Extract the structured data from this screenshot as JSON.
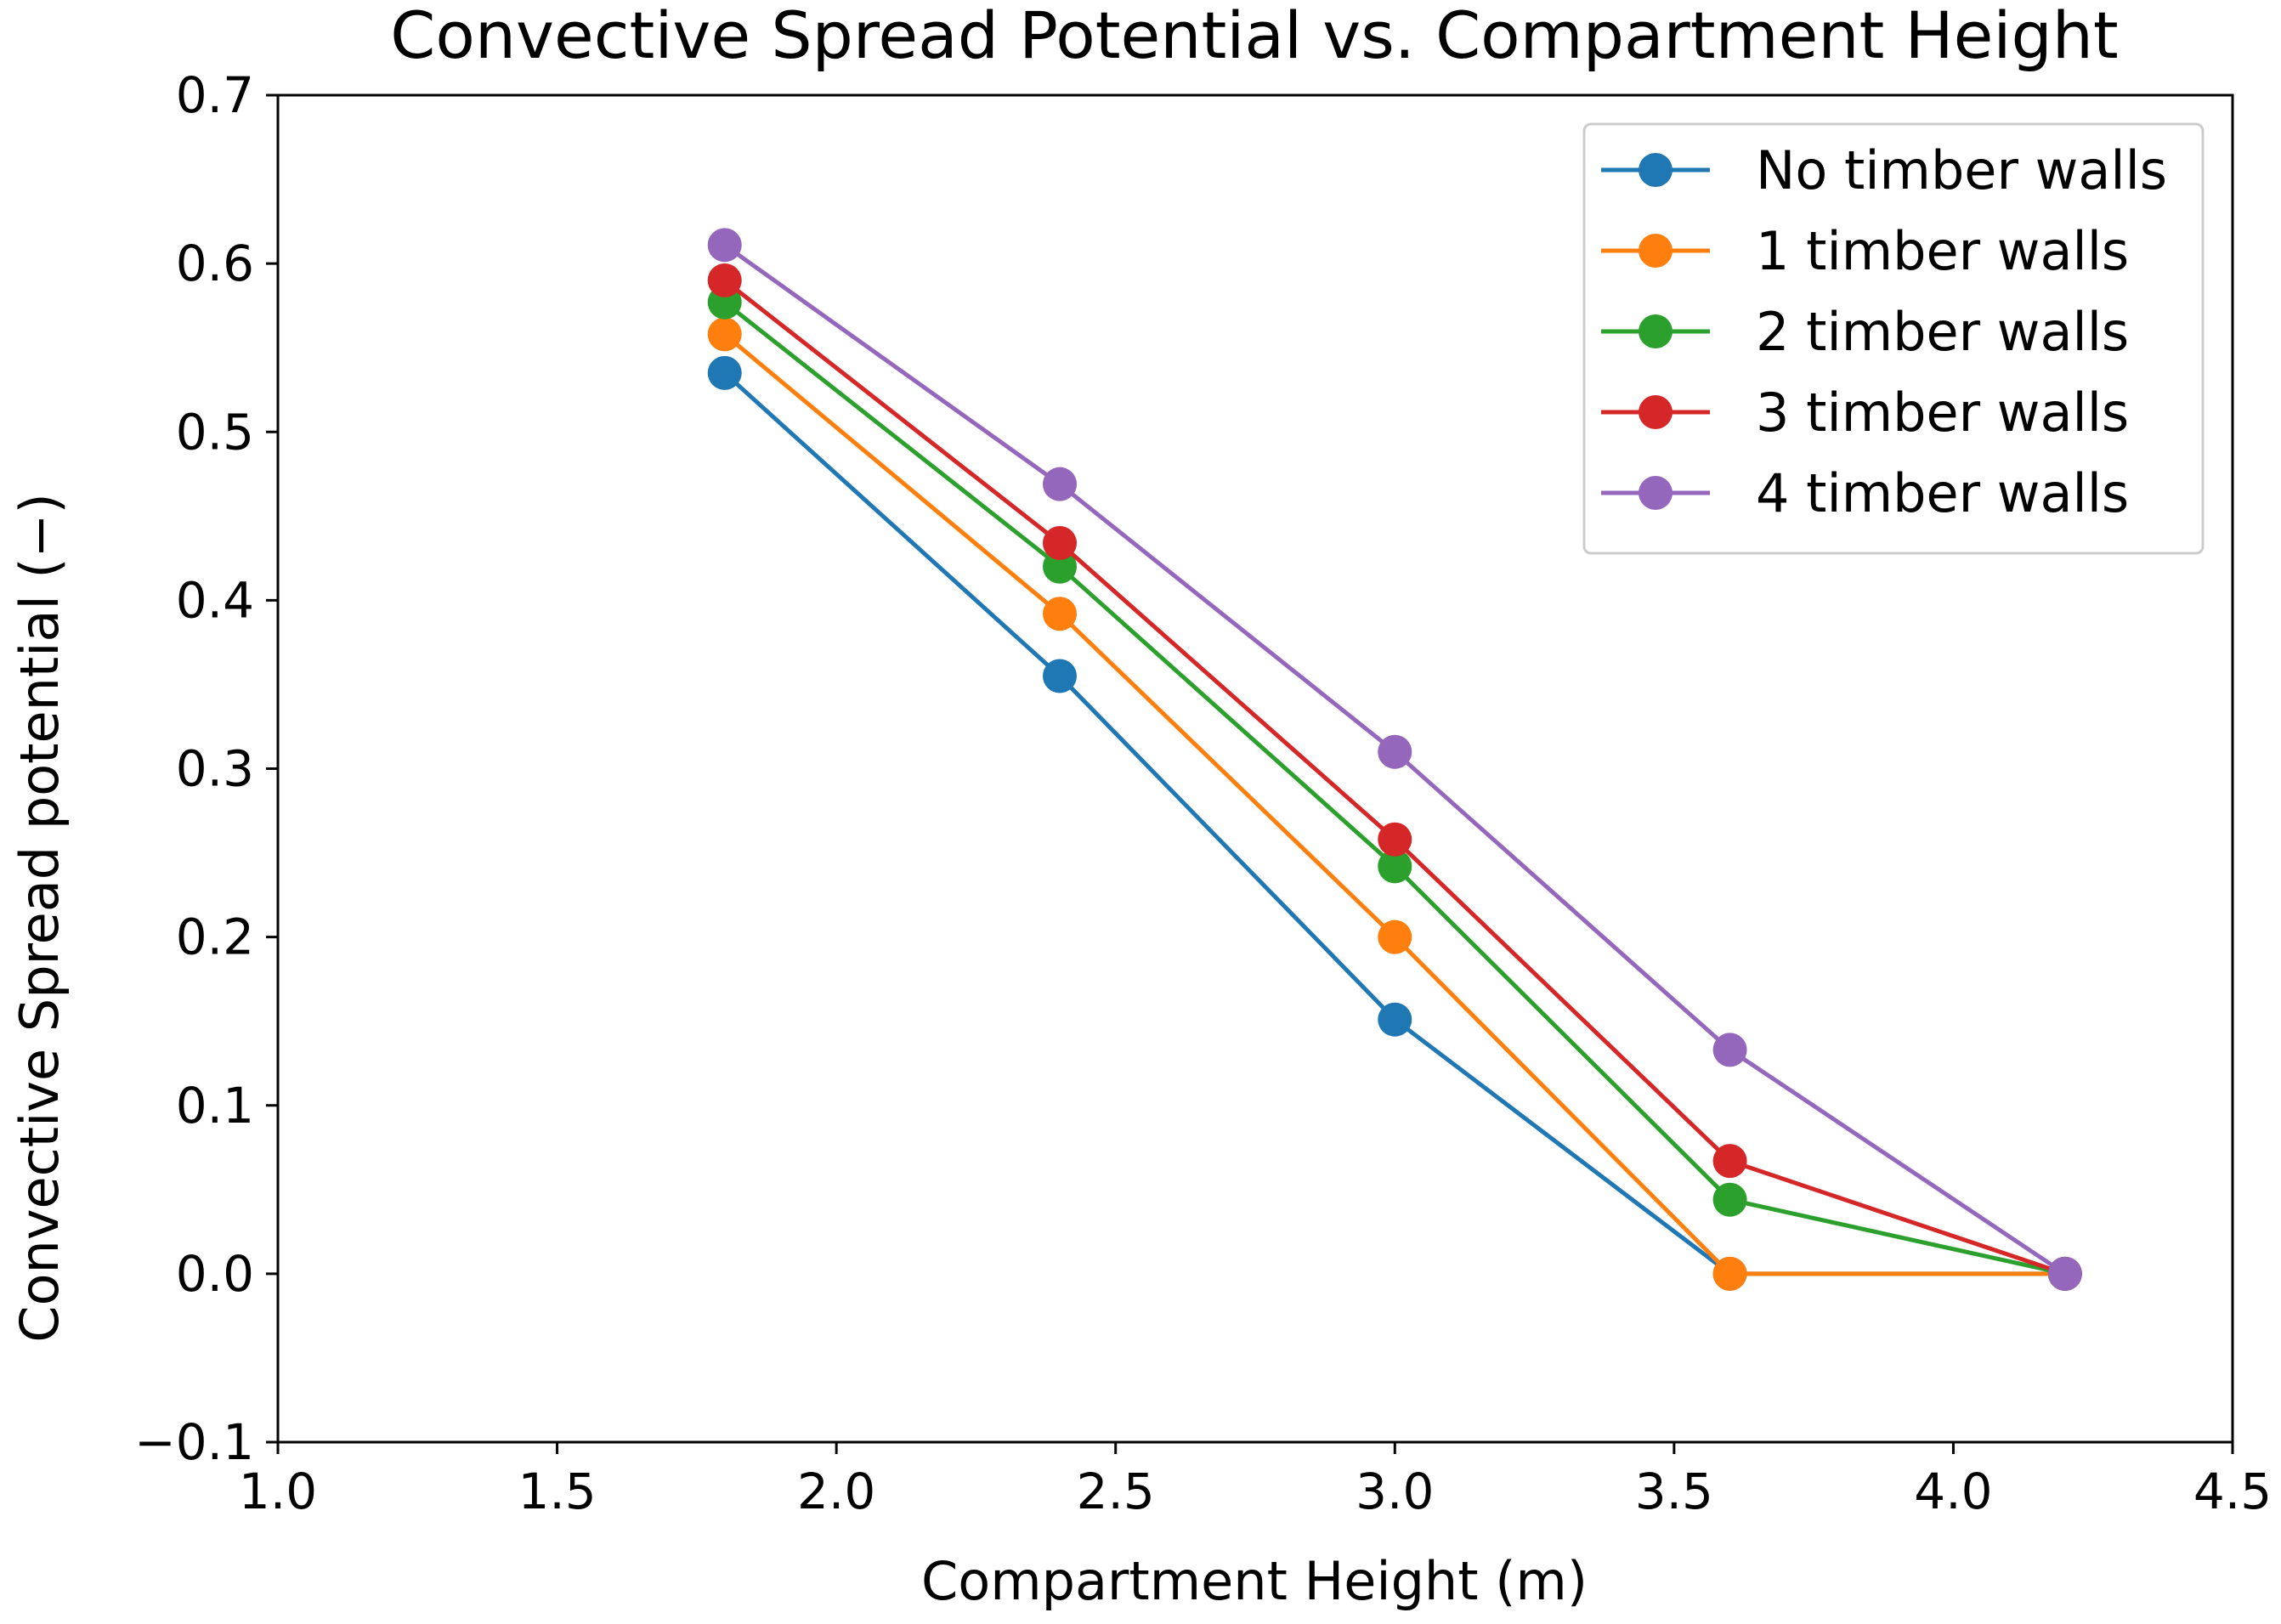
{
  "chart_data": {
    "type": "line",
    "title": "Convective Spread Potential vs. Compartment Height",
    "xlabel": "Compartment Height (m)",
    "ylabel": "Convective Spread potential (−)",
    "xlim": [
      1.0,
      4.5
    ],
    "ylim": [
      -0.1,
      0.7
    ],
    "xticks": [
      1.0,
      1.5,
      2.0,
      2.5,
      3.0,
      3.5,
      4.0,
      4.5
    ],
    "xtick_labels": [
      "1.0",
      "1.5",
      "2.0",
      "2.5",
      "3.0",
      "3.5",
      "4.0",
      "4.5"
    ],
    "yticks": [
      -0.1,
      0.0,
      0.1,
      0.2,
      0.3,
      0.4,
      0.5,
      0.6,
      0.7
    ],
    "ytick_labels": [
      "−0.1",
      "0.0",
      "0.1",
      "0.2",
      "0.3",
      "0.4",
      "0.5",
      "0.6",
      "0.7"
    ],
    "grid": false,
    "legend_position": "top-right",
    "x": [
      1.8,
      2.4,
      3.0,
      3.6,
      4.2
    ],
    "series": [
      {
        "name": "No timber walls",
        "color": "#1f77b4",
        "values": [
          0.535,
          0.355,
          0.151,
          0.0,
          0.0
        ]
      },
      {
        "name": "1 timber walls",
        "color": "#ff7f0e",
        "values": [
          0.558,
          0.392,
          0.2,
          0.0,
          0.0
        ]
      },
      {
        "name": "2 timber walls",
        "color": "#2ca02c",
        "values": [
          0.577,
          0.42,
          0.242,
          0.044,
          0.0
        ]
      },
      {
        "name": "3 timber walls",
        "color": "#d62728",
        "values": [
          0.59,
          0.434,
          0.258,
          0.067,
          0.0
        ]
      },
      {
        "name": "4 timber walls",
        "color": "#9467bd",
        "values": [
          0.611,
          0.469,
          0.31,
          0.133,
          0.0
        ]
      }
    ]
  }
}
